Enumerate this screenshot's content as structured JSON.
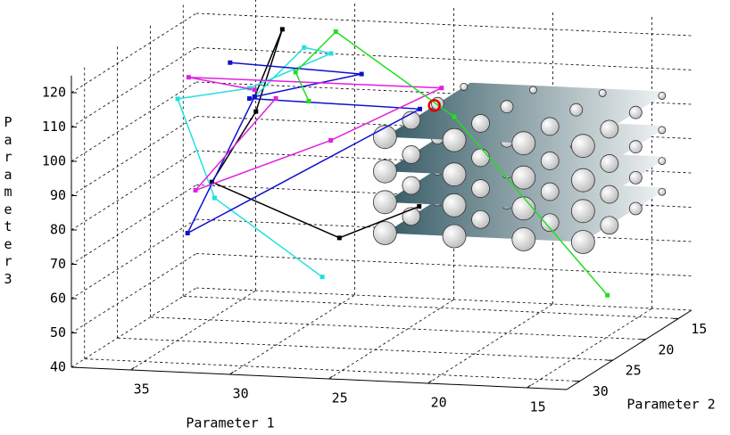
{
  "chart_data": {
    "type": "line3d",
    "xlabel": "Parameter 1",
    "ylabel": "Parameter 2",
    "zlabel": "Parameter 3",
    "xlim": [
      13,
      38
    ],
    "ylim": [
      13,
      32
    ],
    "zlim": [
      40,
      125
    ],
    "xticks": [
      15,
      20,
      25,
      30,
      35
    ],
    "yticks": [
      15,
      20,
      25,
      30
    ],
    "zticks": [
      40,
      50,
      60,
      70,
      80,
      90,
      100,
      110,
      120
    ],
    "grid": true,
    "series": [
      {
        "color": "#000000",
        "x": [
          33.4,
          32,
          33,
          32.9,
          25.8,
          23.1
        ],
        "y": [
          18,
          18,
          19,
          26,
          28,
          24
        ],
        "z": [
          103,
          123,
          100,
          88,
          76,
          81
        ]
      },
      {
        "color": "#22e0e0",
        "x": [
          33.4,
          30.9,
          30.2,
          33,
          33.3,
          32.1,
          26
        ],
        "y": [
          18,
          18,
          16,
          20,
          30,
          28,
          30
        ],
        "z": [
          103,
          118,
          114,
          108,
          117,
          86,
          67
        ]
      },
      {
        "color": "#1010cc",
        "x": [
          35.3,
          28,
          33.4,
          32.8,
          22.4,
          33
        ],
        "y": [
          16,
          18,
          18,
          30,
          26,
          20
        ],
        "z": [
          110,
          111,
          103,
          78,
          112,
          105
        ]
      },
      {
        "color": "#e020e0",
        "x": [
          33.4,
          35.4,
          23.3,
          26.9,
          32.4,
          31
        ],
        "y": [
          18,
          22,
          20,
          26,
          30,
          22
        ],
        "z": [
          105,
          113,
          110.6,
          101.7,
          90.6,
          108
        ]
      },
      {
        "color": "#22dd22",
        "x": [
          30,
          31,
          29.3,
          22,
          13.6
        ],
        "y": [
          20,
          19,
          18,
          22,
          24
        ],
        "z": [
          105,
          112,
          123,
          105,
          57.6
        ]
      }
    ],
    "planes": {
      "color": "#2f5560",
      "levels": [
        78,
        87,
        96,
        106
      ],
      "xlim": [
        13.5,
        23.5
      ],
      "ylim": [
        15,
        28
      ],
      "sphere_x": [
        23.5,
        20,
        16.5,
        13.5
      ],
      "sphere_y": [
        28,
        24,
        20,
        16
      ],
      "sphere_radius": [
        13,
        10,
        7,
        4
      ],
      "sphere_color": "#bbbbbb"
    },
    "highlight": {
      "x": 23,
      "y": 22,
      "z": 108,
      "color": "#dd0000"
    }
  }
}
